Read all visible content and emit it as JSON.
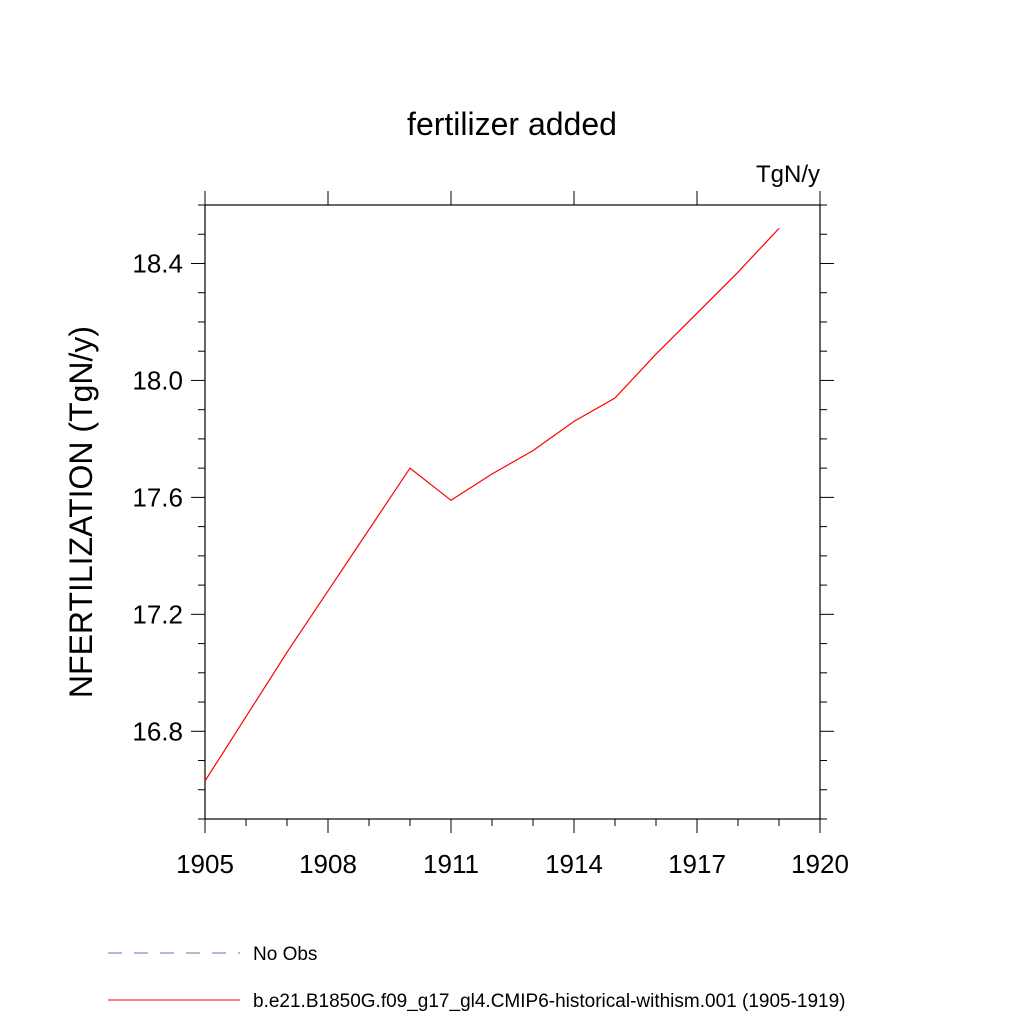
{
  "chart_data": {
    "type": "line",
    "title": "fertilizer added",
    "units_label": "TgN/y",
    "ylabel": "NFERTILIZATION  (TgN/y)",
    "xlabel": "",
    "xlim": [
      1905,
      1920
    ],
    "ylim": [
      16.5,
      18.6
    ],
    "x_ticks": [
      1905,
      1908,
      1911,
      1914,
      1917,
      1920
    ],
    "y_ticks": [
      16.8,
      17.2,
      17.6,
      18.0,
      18.4
    ],
    "x_tick_labels": [
      "1905",
      "1908",
      "1911",
      "1914",
      "1917",
      "1920"
    ],
    "y_tick_labels": [
      "16.8",
      "17.2",
      "17.6",
      "18.0",
      "18.4"
    ],
    "grid": false,
    "legend_position": "bottom-left",
    "series": [
      {
        "name": "No Obs",
        "color": "#7b68b5",
        "dash": true,
        "x": [],
        "y": []
      },
      {
        "name": "b.e21.B1850G.f09_g17_gl4.CMIP6-historical-withism.001 (1905-1919)",
        "color": "#ff0000",
        "dash": false,
        "x": [
          1905,
          1906,
          1907,
          1908,
          1909,
          1910,
          1911,
          1912,
          1913,
          1914,
          1915,
          1916,
          1917,
          1918,
          1919
        ],
        "y": [
          16.63,
          16.85,
          17.07,
          17.28,
          17.49,
          17.7,
          17.59,
          17.68,
          17.76,
          17.86,
          17.94,
          18.09,
          18.23,
          18.37,
          18.52
        ]
      }
    ]
  }
}
